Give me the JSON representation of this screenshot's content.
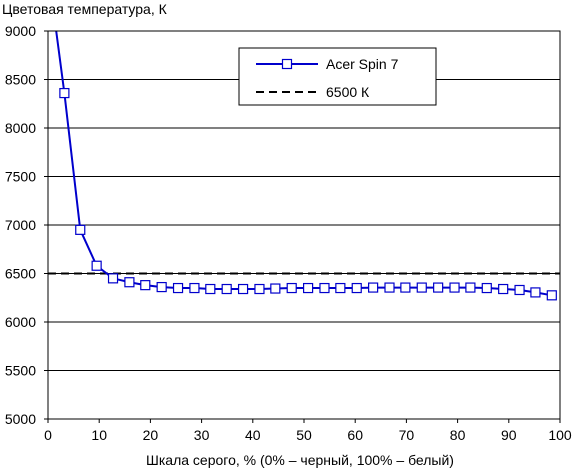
{
  "chart_data": {
    "type": "line",
    "title": "Цветовая температура, К",
    "xlabel": "Шкала серого, % (0% – черный, 100% – белый)",
    "ylabel": "",
    "xlim": [
      0,
      100
    ],
    "ylim": [
      5000,
      9000
    ],
    "x_ticks": [
      0,
      10,
      20,
      30,
      40,
      50,
      60,
      70,
      80,
      90,
      100
    ],
    "y_ticks": [
      5000,
      5500,
      6000,
      6500,
      7000,
      7500,
      8000,
      8500,
      9000
    ],
    "grid": "horizontal",
    "legend_position": "top-right",
    "series": [
      {
        "name": "Acer Spin 7",
        "color": "#0000cc",
        "marker": "square",
        "x": [
          1.6,
          3.2,
          6.3,
          9.5,
          12.7,
          15.9,
          19.0,
          22.2,
          25.4,
          28.6,
          31.7,
          34.9,
          38.1,
          41.3,
          44.4,
          47.6,
          50.8,
          54.0,
          57.1,
          60.3,
          63.5,
          66.7,
          69.8,
          73.0,
          76.2,
          79.4,
          82.5,
          85.7,
          88.9,
          92.1,
          95.2,
          98.4
        ],
        "y": [
          9000,
          8360,
          6950,
          6580,
          6450,
          6410,
          6380,
          6360,
          6350,
          6350,
          6340,
          6340,
          6340,
          6340,
          6345,
          6350,
          6350,
          6350,
          6350,
          6350,
          6355,
          6355,
          6355,
          6355,
          6355,
          6355,
          6355,
          6350,
          6340,
          6330,
          6305,
          6275
        ]
      },
      {
        "name": "6500 К",
        "color": "#000000",
        "style": "dashed",
        "x": [
          0,
          100
        ],
        "y": [
          6500,
          6500
        ]
      }
    ]
  }
}
